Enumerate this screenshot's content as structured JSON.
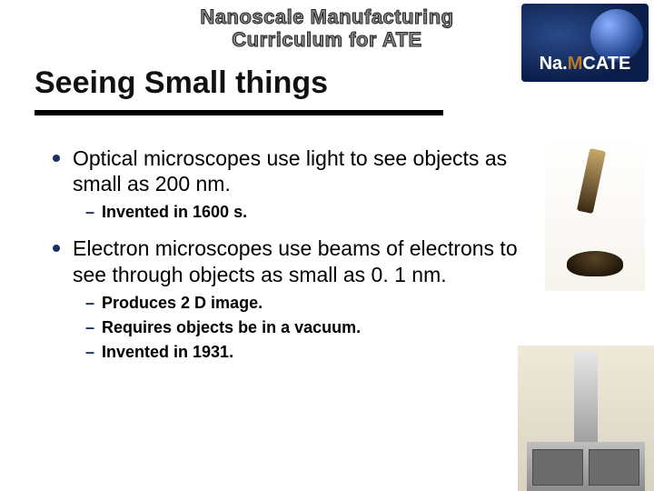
{
  "header": {
    "line1": "Nanoscale Manufacturing",
    "line2": "Curriculum for ATE",
    "logo_prefix": "Na.",
    "logo_mid": "M",
    "logo_suffix": "CATE"
  },
  "title": "Seeing Small things",
  "bullets": [
    {
      "level": 1,
      "text": "Optical microscopes use light to see objects as small as 200 nm."
    },
    {
      "level": 2,
      "text": "Invented in 1600 s."
    },
    {
      "level": 1,
      "text": "Electron microscopes use beams of electrons to see through objects as small as 0. 1 nm."
    },
    {
      "level": 2,
      "text": "Produces 2 D image."
    },
    {
      "level": 2,
      "text": "Requires objects be in a vacuum."
    },
    {
      "level": 2,
      "text": "Invented in 1931."
    }
  ],
  "colors": {
    "bullet_accent": "#1a2f6a",
    "title_rule": "#000000",
    "header_text": "#888888"
  }
}
